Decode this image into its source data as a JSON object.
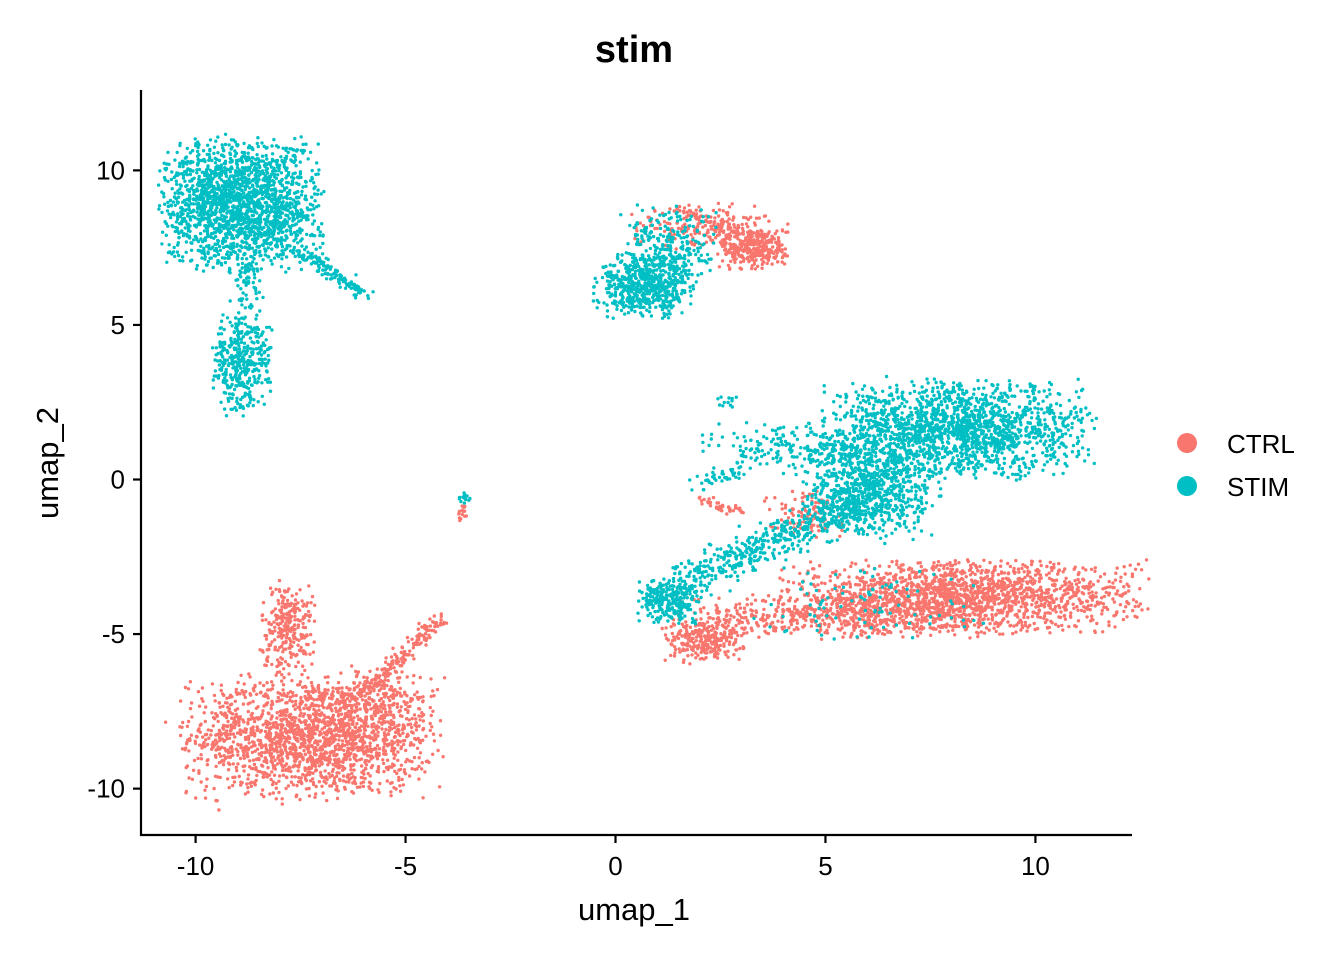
{
  "chart_data": {
    "type": "scatter",
    "title": "stim",
    "xlabel": "umap_1",
    "ylabel": "umap_2",
    "xlim": [
      -11.3,
      12.3
    ],
    "ylim": [
      -11.5,
      12.6
    ],
    "xticks": [
      -10,
      -5,
      0,
      5,
      10
    ],
    "yticks": [
      -10,
      -5,
      0,
      5,
      10
    ],
    "grid": false,
    "legend_position": "right",
    "series": [
      {
        "name": "CTRL",
        "color": "#F8766D",
        "clusters": [
          {
            "cx": -7.2,
            "cy": -8.3,
            "sx": 1.45,
            "sy": 0.95,
            "n": 1900
          },
          {
            "cx": -7.8,
            "cy": -4.8,
            "sx": 0.32,
            "sy": 0.7,
            "n": 260
          },
          {
            "cx": -5.6,
            "cy": -7.0,
            "sx": 0.6,
            "sy": 0.5,
            "n": 120
          },
          {
            "cx": 8.3,
            "cy": -3.8,
            "sx": 2.0,
            "sy": 0.55,
            "n": 1700
          },
          {
            "cx": 5.2,
            "cy": -4.4,
            "sx": 1.8,
            "sy": 0.35,
            "n": 500
          },
          {
            "cx": 2.1,
            "cy": -5.2,
            "sx": 0.45,
            "sy": 0.35,
            "n": 260
          },
          {
            "cx": 3.3,
            "cy": 7.5,
            "sx": 0.4,
            "sy": 0.35,
            "n": 340
          },
          {
            "cx": 2.0,
            "cy": 8.2,
            "sx": 0.8,
            "sy": 0.35,
            "n": 180
          },
          {
            "cx": 4.6,
            "cy": -1.1,
            "sx": 0.5,
            "sy": 0.35,
            "n": 110
          },
          {
            "cx": -3.65,
            "cy": -1.1,
            "sx": 0.06,
            "sy": 0.15,
            "n": 14
          }
        ],
        "lines": [
          {
            "x0": -6.0,
            "y0": -6.9,
            "x1": -4.2,
            "y1": -4.5,
            "n": 160,
            "w": 0.12
          },
          {
            "x0": 2.0,
            "y0": -0.6,
            "x1": 3.0,
            "y1": -1.1,
            "n": 40,
            "w": 0.08
          },
          {
            "x0": 1.5,
            "y0": 8.8,
            "x1": 3.0,
            "y1": 7.9,
            "n": 60,
            "w": 0.12
          }
        ]
      },
      {
        "name": "STIM",
        "color": "#00BFC4",
        "clusters": [
          {
            "cx": -8.9,
            "cy": 8.9,
            "sx": 0.9,
            "sy": 1.0,
            "n": 1900
          },
          {
            "cx": -8.9,
            "cy": 3.8,
            "sx": 0.35,
            "sy": 0.8,
            "n": 380
          },
          {
            "cx": -8.8,
            "cy": 6.5,
            "sx": 0.2,
            "sy": 0.5,
            "n": 70
          },
          {
            "cx": 8.2,
            "cy": 1.6,
            "sx": 1.5,
            "sy": 0.75,
            "n": 1700
          },
          {
            "cx": 6.1,
            "cy": -0.4,
            "sx": 0.75,
            "sy": 0.7,
            "n": 650
          },
          {
            "cx": 4.7,
            "cy": 1.0,
            "sx": 1.2,
            "sy": 0.4,
            "n": 280
          },
          {
            "cx": 0.65,
            "cy": 6.2,
            "sx": 0.55,
            "sy": 0.45,
            "n": 480
          },
          {
            "cx": 1.2,
            "cy": 7.3,
            "sx": 0.55,
            "sy": 0.75,
            "n": 340
          },
          {
            "cx": 1.3,
            "cy": -3.9,
            "sx": 0.35,
            "sy": 0.35,
            "n": 240
          },
          {
            "cx": 2.7,
            "cy": 2.5,
            "sx": 0.12,
            "sy": 0.08,
            "n": 12
          },
          {
            "cx": -3.6,
            "cy": -0.6,
            "sx": 0.07,
            "sy": 0.1,
            "n": 14
          },
          {
            "cx": 6.0,
            "cy": -4.0,
            "sx": 1.4,
            "sy": 0.6,
            "n": 90
          }
        ],
        "lines": [
          {
            "x0": -7.5,
            "y0": 7.4,
            "x1": -5.9,
            "y1": 5.9,
            "n": 120,
            "w": 0.1
          },
          {
            "x0": 1.5,
            "y0": -3.4,
            "x1": 6.0,
            "y1": -0.6,
            "n": 500,
            "w": 0.3
          },
          {
            "x0": 1.8,
            "y0": -0.2,
            "x1": 3.0,
            "y1": 0.3,
            "n": 40,
            "w": 0.12
          }
        ]
      }
    ]
  }
}
